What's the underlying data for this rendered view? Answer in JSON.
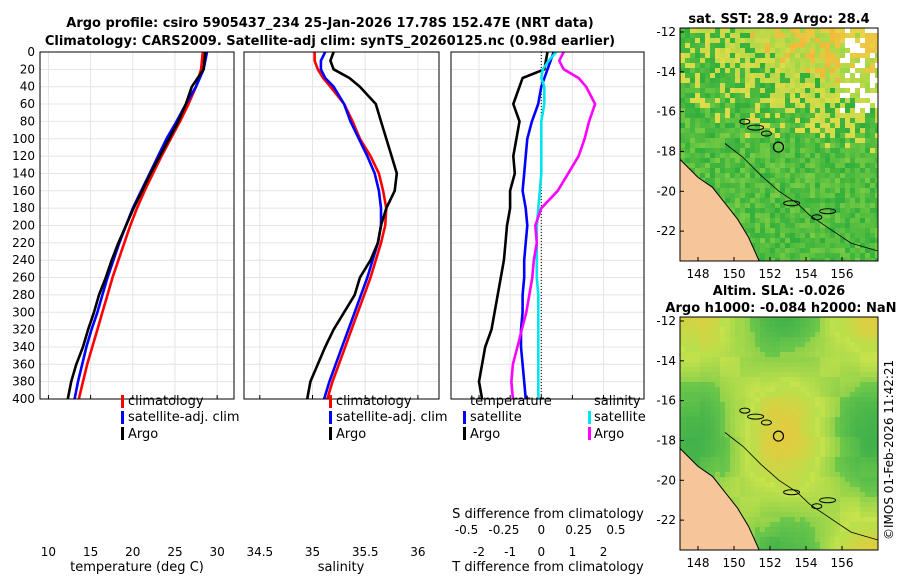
{
  "header": {
    "title_line1": "Argo profile: csiro 5905437_234 25-Jan-2026 17.78S 152.47E (NRT data)",
    "title_line2": "Climatology: CARS2009. Satellite-adj clim: synTS_20260125.nc (0.98d earlier)"
  },
  "depth_ticks": [
    0,
    20,
    40,
    60,
    80,
    100,
    120,
    140,
    160,
    180,
    200,
    220,
    240,
    260,
    280,
    300,
    320,
    340,
    360,
    380,
    400
  ],
  "legend_labels": {
    "climatology": "climatology",
    "satellite_adj": "satellite-adj. clim",
    "argo": "Argo",
    "temperature_heading": "temperature",
    "salinity_heading": "salinity",
    "satellite": "satellite"
  },
  "colors": {
    "climatology": "#ff0000",
    "satellite_adj": "#0000ff",
    "argo": "#000000",
    "salinity_satellite": "#00e5ee",
    "salinity_argo": "#ff00ff",
    "land": "#f7c59a"
  },
  "chart_data": [
    {
      "type": "line",
      "title": "",
      "xlabel": "temperature (deg C)",
      "ylabel": "",
      "xlim": [
        9,
        32
      ],
      "ylim": [
        400,
        0
      ],
      "xticks": [
        "10",
        "15",
        "20",
        "25",
        "30"
      ],
      "xtick_values": [
        10,
        15,
        20,
        25,
        30
      ],
      "y_depth": [
        0,
        20,
        40,
        60,
        80,
        100,
        120,
        140,
        160,
        180,
        200,
        220,
        240,
        260,
        280,
        300,
        320,
        340,
        360,
        380,
        400
      ],
      "series": [
        {
          "name": "climatology",
          "color": "#ff0000",
          "values": [
            28.3,
            28.1,
            27.5,
            26.6,
            25.6,
            24.5,
            23.4,
            22.4,
            21.4,
            20.5,
            19.7,
            19.0,
            18.3,
            17.6,
            17.0,
            16.4,
            15.8,
            15.2,
            14.6,
            14.1,
            13.6
          ]
        },
        {
          "name": "satellite-adj. clim",
          "color": "#0000ff",
          "values": [
            28.8,
            28.4,
            27.5,
            26.3,
            25.2,
            24.0,
            23.0,
            22.0,
            21.0,
            20.0,
            19.2,
            18.4,
            17.7,
            17.0,
            16.4,
            15.8,
            15.1,
            14.5,
            14.0,
            13.5,
            13.1
          ]
        },
        {
          "name": "Argo",
          "color": "#000000",
          "values": [
            28.6,
            28.4,
            27.0,
            26.3,
            25.4,
            24.3,
            23.2,
            22.1,
            21.1,
            20.1,
            19.2,
            18.3,
            17.5,
            16.8,
            16.0,
            15.4,
            14.7,
            14.1,
            13.3,
            12.7,
            12.3
          ]
        }
      ]
    },
    {
      "type": "line",
      "title": "",
      "xlabel": "salinity",
      "ylabel": "",
      "xlim": [
        34.35,
        36.2
      ],
      "ylim": [
        400,
        0
      ],
      "xticks": [
        "34.5",
        "35",
        "35.5",
        "36"
      ],
      "xtick_values": [
        34.5,
        35.0,
        35.5,
        36.0
      ],
      "y_depth": [
        0,
        10,
        20,
        30,
        40,
        60,
        80,
        100,
        120,
        140,
        160,
        180,
        200,
        220,
        240,
        260,
        280,
        300,
        320,
        340,
        360,
        380,
        400
      ],
      "series": [
        {
          "name": "climatology",
          "color": "#ff0000",
          "values": [
            35.02,
            35.02,
            35.05,
            35.1,
            35.17,
            35.3,
            35.38,
            35.45,
            35.55,
            35.63,
            35.67,
            35.7,
            35.69,
            35.65,
            35.6,
            35.55,
            35.49,
            35.43,
            35.37,
            35.31,
            35.25,
            35.19,
            35.14
          ]
        },
        {
          "name": "satellite-adj. clim",
          "color": "#0000ff",
          "values": [
            35.12,
            35.08,
            35.08,
            35.12,
            35.2,
            35.3,
            35.36,
            35.44,
            35.52,
            35.59,
            35.63,
            35.65,
            35.65,
            35.62,
            35.57,
            35.52,
            35.46,
            35.4,
            35.34,
            35.28,
            35.22,
            35.16,
            35.11
          ]
        },
        {
          "name": "Argo",
          "color": "#000000",
          "values": [
            35.2,
            35.17,
            35.2,
            35.35,
            35.45,
            35.6,
            35.65,
            35.7,
            35.75,
            35.8,
            35.78,
            35.7,
            35.65,
            35.62,
            35.55,
            35.45,
            35.4,
            35.3,
            35.2,
            35.12,
            35.05,
            34.98,
            34.95
          ]
        }
      ]
    },
    {
      "type": "line",
      "title": "",
      "xlabel": "T difference from climatology",
      "ylabel": "",
      "xlim": [
        -2.9,
        3.3
      ],
      "ylim": [
        400,
        0
      ],
      "xticks": [
        "-2",
        "-1",
        "0",
        "1",
        "2"
      ],
      "xtick_values": [
        -2,
        -1,
        0,
        1,
        2
      ],
      "top_xlabel": "S difference from climatology",
      "top_xticks": [
        "-0.5",
        "-0.25",
        "0",
        "0.25",
        "0.5"
      ],
      "top_xtick_values": [
        -0.5,
        -0.25,
        0,
        0.25,
        0.5
      ],
      "s_scale_factor": 2.4,
      "y_depth": [
        0,
        10,
        20,
        30,
        40,
        60,
        80,
        100,
        120,
        140,
        160,
        180,
        200,
        220,
        240,
        260,
        280,
        300,
        320,
        340,
        360,
        380,
        400
      ],
      "series": [
        {
          "name": "temperature satellite",
          "quantity": "T",
          "color": "#0000ff",
          "values": [
            0.4,
            0.3,
            0.2,
            0.1,
            0.0,
            -0.1,
            -0.3,
            -0.45,
            -0.5,
            -0.55,
            -0.6,
            -0.5,
            -0.45,
            -0.5,
            -0.55,
            -0.55,
            -0.6,
            -0.6,
            -0.65,
            -0.65,
            -0.6,
            -0.55,
            -0.5
          ]
        },
        {
          "name": "temperature Argo",
          "quantity": "T",
          "color": "#000000",
          "values": [
            0.2,
            0.15,
            0.1,
            -0.6,
            -0.7,
            -0.9,
            -0.7,
            -0.8,
            -0.9,
            -0.85,
            -1.0,
            -1.0,
            -1.1,
            -1.15,
            -1.2,
            -1.3,
            -1.4,
            -1.5,
            -1.6,
            -1.8,
            -1.9,
            -2.0,
            -1.9
          ]
        },
        {
          "name": "salinity satellite",
          "quantity": "S",
          "color": "#00e5ee",
          "values": [
            0.1,
            0.05,
            0.01,
            0.0,
            0.02,
            0.02,
            0.0,
            0.0,
            0.0,
            0.0,
            -0.01,
            -0.02,
            -0.03,
            -0.03,
            -0.03,
            -0.03,
            -0.02,
            -0.02,
            -0.02,
            -0.02,
            -0.02,
            -0.02,
            -0.02
          ]
        },
        {
          "name": "salinity Argo",
          "quantity": "S",
          "color": "#ff00ff",
          "values": [
            0.15,
            0.12,
            0.15,
            0.25,
            0.3,
            0.36,
            0.32,
            0.29,
            0.25,
            0.18,
            0.11,
            0.0,
            -0.04,
            -0.03,
            -0.05,
            -0.06,
            -0.08,
            -0.1,
            -0.13,
            -0.16,
            -0.19,
            -0.2,
            -0.19
          ]
        }
      ]
    },
    {
      "type": "heatmap",
      "title": "sat. SST: 28.9 Argo: 28.4",
      "xlabel": "",
      "ylabel": "",
      "xlim": [
        147,
        158
      ],
      "ylim": [
        -23.5,
        -11.8
      ],
      "xticks": [
        "148",
        "150",
        "152",
        "154",
        "156"
      ],
      "xtick_values": [
        148,
        150,
        152,
        154,
        156
      ],
      "yticks": [
        "-12",
        "-14",
        "-16",
        "-18",
        "-20",
        "-22"
      ],
      "ytick_values": [
        -12,
        -14,
        -16,
        -18,
        -20,
        -22
      ],
      "marker": {
        "lon": 152.47,
        "lat": -17.78
      }
    },
    {
      "type": "heatmap",
      "title": "Altim. SLA: -0.026",
      "subtitle": "Argo h1000: -0.084 h2000: NaN",
      "xlabel": "",
      "ylabel": "",
      "xlim": [
        147,
        158
      ],
      "ylim": [
        -23.5,
        -11.8
      ],
      "xticks": [
        "148",
        "150",
        "152",
        "154",
        "156"
      ],
      "xtick_values": [
        148,
        150,
        152,
        154,
        156
      ],
      "yticks": [
        "-12",
        "-14",
        "-16",
        "-18",
        "-20",
        "-22"
      ],
      "ytick_values": [
        -12,
        -14,
        -16,
        -18,
        -20,
        -22
      ],
      "marker": {
        "lon": 152.47,
        "lat": -17.78
      }
    }
  ],
  "watermark": "©IMOS 01-Feb-2026 11:42:21"
}
